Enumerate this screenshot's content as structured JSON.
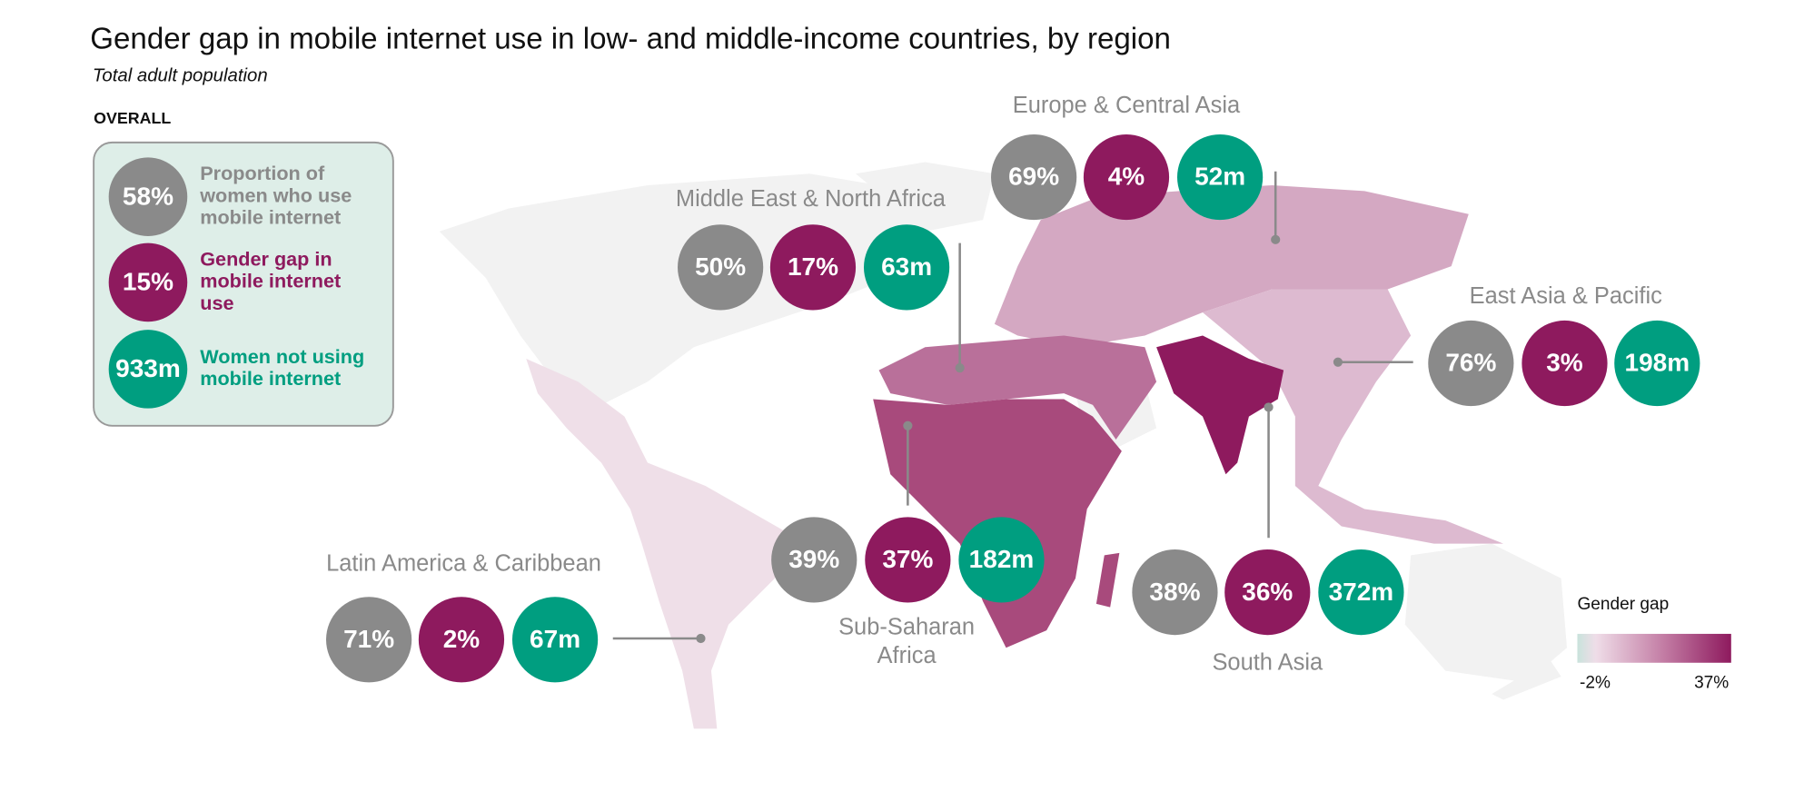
{
  "title": "Gender gap in mobile internet use in low- and middle-income countries, by region",
  "subtitle": "Total adult population",
  "overall": {
    "heading": "OVERALL",
    "items": [
      {
        "value": "58%",
        "label": [
          "Proportion of",
          "women who use",
          "mobile internet"
        ]
      },
      {
        "value": "15%",
        "label": [
          "Gender gap in",
          "mobile internet",
          "use"
        ]
      },
      {
        "value": "933m",
        "label": [
          "Women not using",
          "mobile internet"
        ]
      }
    ]
  },
  "regions": [
    {
      "name": [
        "Europe & Central Asia"
      ],
      "stats": [
        "69%",
        "4%",
        "52m"
      ]
    },
    {
      "name": [
        "Middle East & North Africa"
      ],
      "stats": [
        "50%",
        "17%",
        "63m"
      ]
    },
    {
      "name": [
        "East Asia & Pacific"
      ],
      "stats": [
        "76%",
        "3%",
        "198m"
      ]
    },
    {
      "name": [
        "Latin America & Caribbean"
      ],
      "stats": [
        "71%",
        "2%",
        "67m"
      ]
    },
    {
      "name": [
        "Sub-Saharan",
        "Africa"
      ],
      "stats": [
        "39%",
        "37%",
        "182m"
      ]
    },
    {
      "name": [
        "South Asia"
      ],
      "stats": [
        "38%",
        "36%",
        "372m"
      ]
    }
  ],
  "legend": {
    "title": "Gender gap",
    "min": "-2%",
    "max": "37%"
  }
}
